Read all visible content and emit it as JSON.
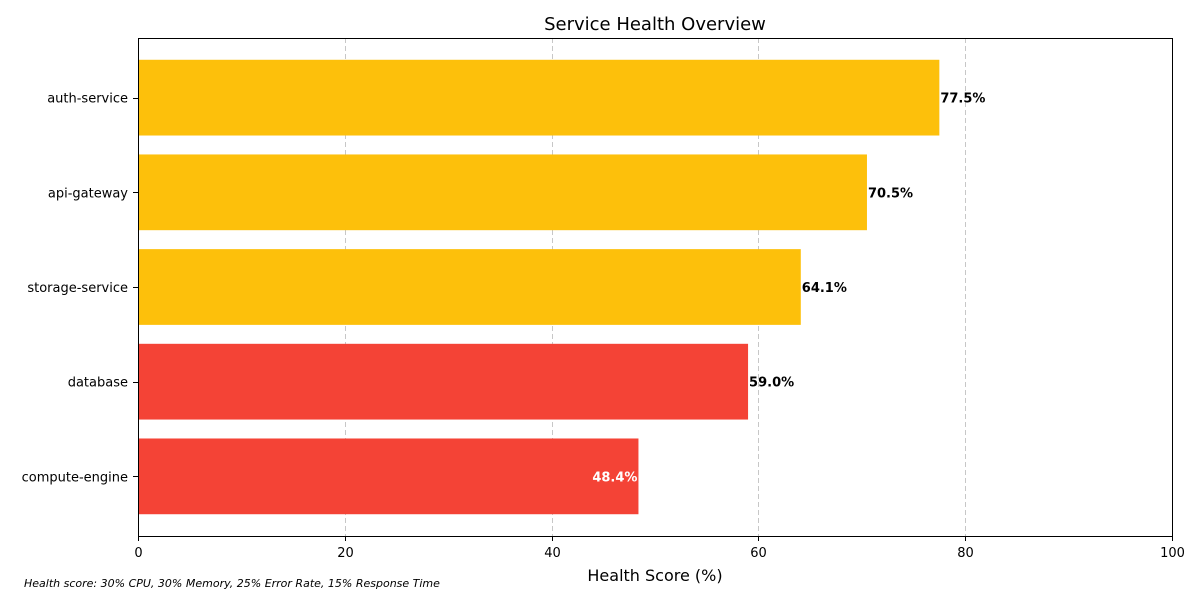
{
  "chart_data": {
    "type": "bar",
    "orientation": "horizontal",
    "title": "Service Health Overview",
    "xlabel": "Health Score (%)",
    "ylabel": "",
    "xlim": [
      0,
      100
    ],
    "x_ticks": [
      0,
      20,
      40,
      60,
      80,
      100
    ],
    "grid": "vertical dashed",
    "categories": [
      "auth-service",
      "api-gateway",
      "storage-service",
      "database",
      "compute-engine"
    ],
    "values": [
      77.5,
      70.5,
      64.1,
      59.0,
      48.4
    ],
    "value_labels": [
      "77.5%",
      "70.5%",
      "64.1%",
      "59.0%",
      "48.4%"
    ],
    "bar_colors": [
      "#fdc00b",
      "#fdc00b",
      "#fdc00b",
      "#f44336",
      "#f44336"
    ],
    "label_colors": [
      "#000000",
      "#000000",
      "#000000",
      "#000000",
      "#ffffff"
    ],
    "footnote": "Health score: 30% CPU, 30% Memory, 25% Error Rate, 15% Response Time"
  }
}
